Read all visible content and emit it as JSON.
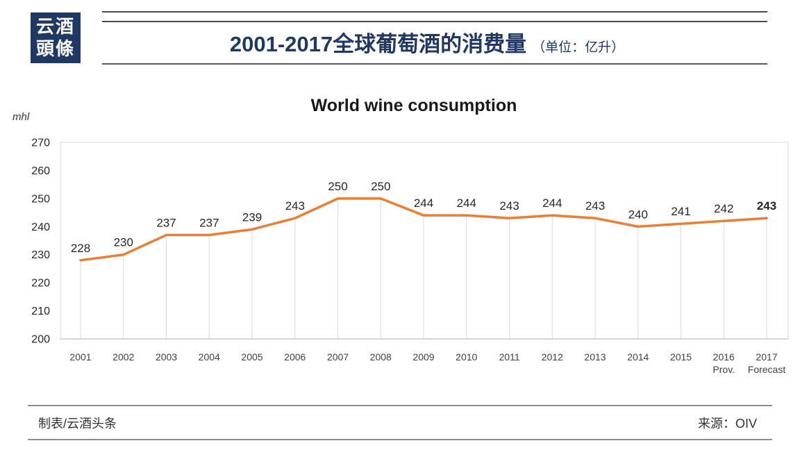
{
  "logo": {
    "line1": "云酒",
    "line2": "頭條",
    "bg_color": "#1F3864",
    "text_color": "#FFFFFF"
  },
  "header": {
    "title": "2001-2017全球葡萄酒的消费量",
    "unit_note": "（单位：亿升）",
    "title_color": "#1F3864"
  },
  "footer": {
    "left": "制表/云酒头条",
    "right": "来源：OIV"
  },
  "chart_data": {
    "type": "line",
    "title": "World wine consumption",
    "y_unit_label": "mhl",
    "categories": [
      "2001",
      "2002",
      "2003",
      "2004",
      "2005",
      "2006",
      "2007",
      "2008",
      "2009",
      "2010",
      "2011",
      "2012",
      "2013",
      "2014",
      "2015",
      "2016 Prov.",
      "2017 Forecast"
    ],
    "x_tick_lines": [
      [
        "2001"
      ],
      [
        "2002"
      ],
      [
        "2003"
      ],
      [
        "2004"
      ],
      [
        "2005"
      ],
      [
        "2006"
      ],
      [
        "2007"
      ],
      [
        "2008"
      ],
      [
        "2009"
      ],
      [
        "2010"
      ],
      [
        "2011"
      ],
      [
        "2012"
      ],
      [
        "2013"
      ],
      [
        "2014"
      ],
      [
        "2015"
      ],
      [
        "2016",
        "Prov."
      ],
      [
        "2017",
        "Forecast"
      ]
    ],
    "values": [
      228,
      230,
      237,
      237,
      239,
      243,
      250,
      250,
      244,
      244,
      243,
      244,
      243,
      240,
      241,
      242,
      243
    ],
    "data_labels": [
      "228",
      "230",
      "237",
      "237",
      "239",
      "243",
      "250",
      "250",
      "244",
      "244",
      "243",
      "244",
      "243",
      "240",
      "241",
      "242",
      "243"
    ],
    "last_label_bold": true,
    "ylim": [
      200,
      270
    ],
    "ytick_step": 10,
    "ytick_labels": [
      "200",
      "210",
      "220",
      "230",
      "240",
      "250",
      "260",
      "270"
    ],
    "grid": "vertical-drop-lines",
    "legend_position": "none",
    "line_color": "#ED7D31",
    "gridline_color": "#D9D9D9",
    "axis_line_color": "#BFBFBF",
    "label_color": "#262626"
  }
}
